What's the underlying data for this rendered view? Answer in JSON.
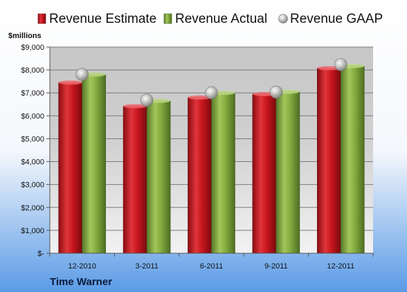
{
  "company": "Time Warner",
  "colors": {
    "estimate": "#c0141b",
    "actual": "#7aa23a",
    "gaap": "#bcbcbc"
  },
  "chart_data": {
    "type": "bar",
    "categories": [
      "12-2010",
      "3-2011",
      "6-2011",
      "9-2011",
      "12-2011"
    ],
    "series": [
      {
        "name": "Revenue Estimate",
        "values": [
          7450,
          6420,
          6800,
          6950,
          8080
        ]
      },
      {
        "name": "Revenue Actual",
        "values": [
          7800,
          6650,
          7000,
          7050,
          8170
        ]
      },
      {
        "name": "Revenue GAAP",
        "values": [
          7800,
          6680,
          7000,
          7030,
          8230
        ]
      }
    ],
    "ylabel": "$millions",
    "ylim": [
      0,
      9000
    ],
    "yticks": [
      0,
      1000,
      2000,
      3000,
      4000,
      5000,
      6000,
      7000,
      8000,
      9000
    ],
    "ytick_labels": [
      "$-",
      "$1,000",
      "$2,000",
      "$3,000",
      "$4,000",
      "$5,000",
      "$6,000",
      "$7,000",
      "$8,000",
      "$9,000"
    ],
    "grid": true,
    "legend": "top"
  }
}
